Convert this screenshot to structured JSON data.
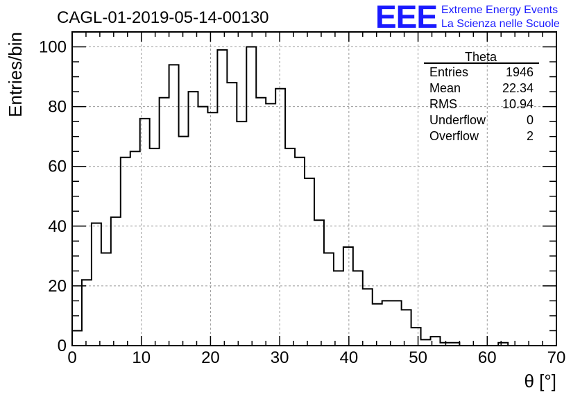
{
  "header": {
    "title": "CAGL-01-2019-05-14-00130",
    "logo_text": "EEE",
    "logo_line1": "Extreme Energy Events",
    "logo_line2": "La Scienza nelle Scuole",
    "logo_color": "#1a1aff"
  },
  "stats": {
    "name": "Theta",
    "rows": [
      {
        "label": "Entries",
        "value": "1946"
      },
      {
        "label": "Mean",
        "value": "22.34"
      },
      {
        "label": "RMS",
        "value": "10.94"
      },
      {
        "label": "Underflow",
        "value": "0"
      },
      {
        "label": "Overflow",
        "value": "2"
      }
    ]
  },
  "chart_data": {
    "type": "histogram",
    "xlabel": "θ [°]",
    "ylabel": "Entries/bin",
    "xlim": [
      0,
      70
    ],
    "ylim": [
      0,
      105
    ],
    "grid": true,
    "x_ticks": [
      "0",
      "10",
      "20",
      "30",
      "40",
      "50",
      "60",
      "70"
    ],
    "y_ticks": [
      "0",
      "20",
      "40",
      "60",
      "80",
      "100"
    ],
    "bin_width": 1.4,
    "bin_start": 0,
    "values": [
      5,
      22,
      41,
      31,
      43,
      63,
      65,
      76,
      66,
      83,
      94,
      70,
      85,
      80,
      78,
      99,
      88,
      75,
      100,
      83,
      81,
      86,
      66,
      63,
      56,
      42,
      31,
      25,
      33,
      25,
      19,
      14,
      15,
      15,
      12,
      6,
      2,
      3,
      1,
      1,
      0,
      0,
      0,
      0,
      1,
      0,
      0,
      0,
      0,
      0
    ]
  }
}
